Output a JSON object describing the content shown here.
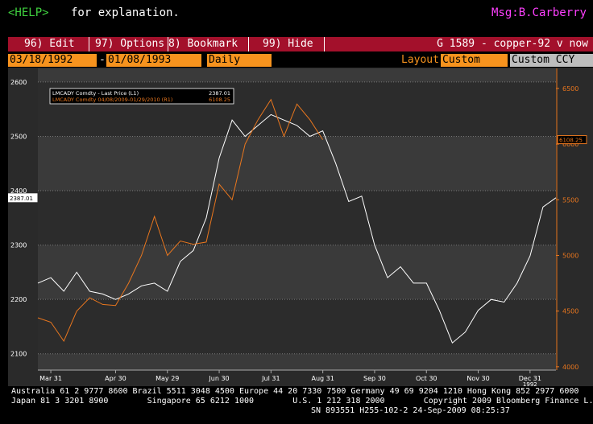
{
  "header": {
    "help_key": "<HELP>",
    "help_text": "for explanation.",
    "message": "Msg:B.Carberry"
  },
  "menu": {
    "items": [
      "96) Edit",
      "97) Options",
      "8) Bookmark",
      "99) Hide"
    ],
    "title": "G 1589 - copper-92 v now"
  },
  "toolbar": {
    "start_date": "03/18/1992",
    "separator": "-",
    "end_date": "01/08/1993",
    "period": "Daily",
    "layout_label": "Layout",
    "layout": "Custom",
    "currency": "Custom CCY"
  },
  "chart_data": {
    "type": "line",
    "categories": [
      null,
      "Mar 31",
      null,
      null,
      null,
      null,
      "Apr 30",
      null,
      null,
      null,
      "May 29",
      null,
      null,
      null,
      "Jun 30",
      null,
      null,
      null,
      "Jul 31",
      null,
      null,
      null,
      "Aug 31",
      null,
      null,
      null,
      "Sep 30",
      null,
      null,
      null,
      "Oct 30",
      null,
      null,
      null,
      "Nov 30",
      null,
      null,
      null,
      "Dec 31",
      null,
      null
    ],
    "x_year_label": "1992",
    "series": [
      {
        "name": "LMCADY Comdty - Last Price (L1)",
        "last": "2387.01",
        "color": "#ffffff",
        "axis": "y",
        "values": [
          2230,
          2240,
          2215,
          2250,
          2215,
          2210,
          2200,
          2210,
          2225,
          2230,
          2215,
          2270,
          2290,
          2350,
          2460,
          2530,
          2500,
          2520,
          2540,
          2530,
          2520,
          2500,
          2510,
          2450,
          2380,
          2390,
          2300,
          2240,
          2260,
          2230,
          2230,
          2180,
          2120,
          2140,
          2180,
          2200,
          2195,
          2230,
          2280,
          2370,
          2387
        ]
      },
      {
        "name": "LMCADY Comdty 04/08/2009-01/29/2010   (R1)",
        "last": "6108.25",
        "color": "#e8761e",
        "axis": "y2",
        "values": [
          4440,
          4400,
          4230,
          4500,
          4620,
          4560,
          4550,
          4750,
          5000,
          5350,
          5000,
          5130,
          5100,
          5120,
          5640,
          5500,
          6000,
          6220,
          6400,
          6070,
          6360,
          6220,
          6040,
          null,
          null,
          null,
          null,
          null,
          null,
          null,
          null,
          null,
          null,
          null,
          null,
          null,
          null,
          null,
          null,
          null,
          null
        ]
      }
    ],
    "ylim": [
      2070,
      2625
    ],
    "yticks": [
      2100,
      2200,
      2300,
      2400,
      2500,
      2600
    ],
    "y2lim": [
      3970,
      6680
    ],
    "y2ticks": [
      4000,
      4500,
      5000,
      5500,
      6000,
      6500
    ],
    "grid": true
  },
  "footer": {
    "lines": [
      "Australia 61 2 9777 8600 Brazil 5511 3048 4500 Europe 44 20 7330 7500 Germany 49 69 9204 1210 Hong Kong 852 2977 6000",
      "Japan 81 3 3201 8900        Singapore 65 6212 1000        U.S. 1 212 318 2000        Copyright 2009 Bloomberg Finance L.P.",
      "SN 893551 H255-102-2 24-Sep-2009 08:25:37"
    ]
  }
}
